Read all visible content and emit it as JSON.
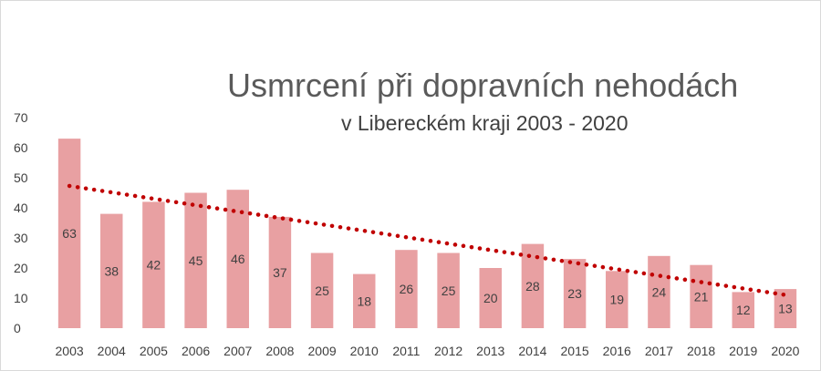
{
  "chart_data": {
    "type": "bar",
    "title": "Usmrcení při dopravních nehodách",
    "subtitle": "v Libereckém kraji 2003 - 2020",
    "xlabel": "",
    "ylabel": "",
    "categories": [
      "2003",
      "2004",
      "2005",
      "2006",
      "2007",
      "2008",
      "2009",
      "2010",
      "2011",
      "2012",
      "2013",
      "2014",
      "2015",
      "2016",
      "2017",
      "2018",
      "2019",
      "2020"
    ],
    "values": [
      63,
      38,
      42,
      45,
      46,
      37,
      25,
      18,
      26,
      25,
      20,
      28,
      23,
      19,
      24,
      21,
      12,
      13
    ],
    "ylim": [
      0,
      70
    ],
    "yticks": [
      0,
      10,
      20,
      30,
      40,
      50,
      60,
      70
    ],
    "trendline": {
      "type": "linear",
      "style": "dotted",
      "color": "#c00000"
    },
    "grid": false,
    "legend": "none",
    "data_labels": true,
    "colors": {
      "bar": "#e8a0a2",
      "trend": "#c00000"
    }
  }
}
